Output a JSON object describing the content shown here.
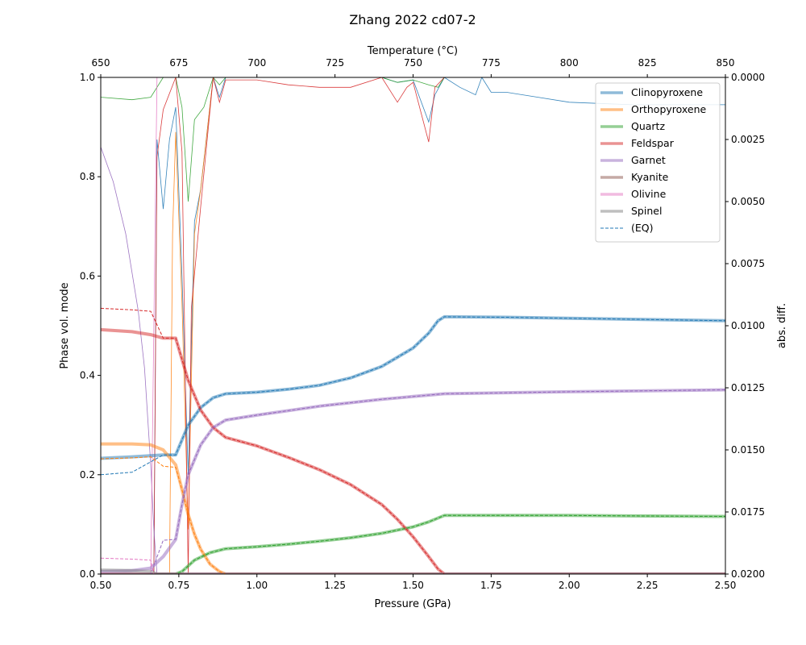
{
  "chart_data": {
    "type": "line",
    "title": "Zhang 2022 cd07-2",
    "xlabel": "Pressure (GPa)",
    "ylabel": "Phase vol. mode",
    "x2label": "Temperature (°C)",
    "y2label": "abs. diff.",
    "xlim": [
      0.5,
      2.5
    ],
    "ylim": [
      0,
      1
    ],
    "x2lim": [
      650,
      850
    ],
    "y2lim": [
      0.02,
      0
    ],
    "xticks": [
      "0.50",
      "0.75",
      "1.00",
      "1.25",
      "1.50",
      "1.75",
      "2.00",
      "2.25",
      "2.50"
    ],
    "yticks": [
      "0.0",
      "0.2",
      "0.4",
      "0.6",
      "0.8",
      "1.0"
    ],
    "x2ticks": [
      "650",
      "675",
      "700",
      "725",
      "750",
      "775",
      "800",
      "825",
      "850"
    ],
    "y2ticks": [
      "0.0000",
      "0.0025",
      "0.0050",
      "0.0075",
      "0.0100",
      "0.0125",
      "0.0150",
      "0.0175",
      "0.0200"
    ],
    "legend_position": "top-right",
    "legend": [
      "Clinopyroxene",
      "Orthopyroxene",
      "Quartz",
      "Feldspar",
      "Garnet",
      "Kyanite",
      "Olivine",
      "Spinel",
      "(EQ)"
    ],
    "grid": false,
    "series": [
      {
        "name": "Clinopyroxene",
        "color": "#1f77b4",
        "x": [
          0.5,
          0.6,
          0.7,
          0.74,
          0.78,
          0.82,
          0.86,
          0.9,
          1.0,
          1.1,
          1.2,
          1.3,
          1.4,
          1.5,
          1.55,
          1.58,
          1.6,
          1.8,
          2.0,
          2.2,
          2.5
        ],
        "y": [
          0.233,
          0.236,
          0.24,
          0.24,
          0.3,
          0.335,
          0.355,
          0.363,
          0.366,
          0.372,
          0.38,
          0.395,
          0.418,
          0.455,
          0.485,
          0.51,
          0.518,
          0.517,
          0.515,
          0.513,
          0.51
        ],
        "eq": [
          0.2,
          0.205,
          0.24,
          0.24,
          0.3,
          0.335,
          0.355,
          0.363,
          0.366,
          0.372,
          0.38,
          0.395,
          0.418,
          0.455,
          0.485,
          0.51,
          0.518,
          0.517,
          0.515,
          0.513,
          0.51
        ]
      },
      {
        "name": "Orthopyroxene",
        "color": "#ff7f0e",
        "x": [
          0.5,
          0.6,
          0.66,
          0.7,
          0.74,
          0.76,
          0.78,
          0.8,
          0.82,
          0.85,
          0.88,
          0.9,
          1.0,
          1.5,
          2.0,
          2.5
        ],
        "y": [
          0.262,
          0.262,
          0.26,
          0.25,
          0.22,
          0.17,
          0.12,
          0.08,
          0.05,
          0.02,
          0.005,
          0.0,
          0.0,
          0.0,
          0.0,
          0.0
        ],
        "eq": [
          0.232,
          0.234,
          0.236,
          0.217,
          0.215,
          0.17,
          0.12,
          0.08,
          0.05,
          0.02,
          0.005,
          0.0,
          0.0,
          0.0,
          0.0,
          0.0
        ]
      },
      {
        "name": "Quartz",
        "color": "#2ca02c",
        "x": [
          0.5,
          0.74,
          0.76,
          0.8,
          0.85,
          0.9,
          1.0,
          1.1,
          1.2,
          1.3,
          1.4,
          1.5,
          1.55,
          1.6,
          1.8,
          2.0,
          2.2,
          2.5
        ],
        "y": [
          0.0,
          0.0,
          0.005,
          0.028,
          0.043,
          0.051,
          0.055,
          0.06,
          0.066,
          0.073,
          0.082,
          0.095,
          0.105,
          0.118,
          0.118,
          0.118,
          0.117,
          0.116
        ],
        "eq": [
          0.0,
          0.0,
          0.005,
          0.028,
          0.043,
          0.051,
          0.055,
          0.06,
          0.066,
          0.073,
          0.082,
          0.095,
          0.105,
          0.118,
          0.118,
          0.118,
          0.117,
          0.116
        ]
      },
      {
        "name": "Feldspar",
        "color": "#d62728",
        "x": [
          0.5,
          0.6,
          0.66,
          0.7,
          0.74,
          0.78,
          0.82,
          0.86,
          0.9,
          1.0,
          1.1,
          1.2,
          1.3,
          1.4,
          1.45,
          1.5,
          1.55,
          1.58,
          1.6,
          2.0,
          2.5
        ],
        "y": [
          0.492,
          0.488,
          0.482,
          0.475,
          0.475,
          0.39,
          0.33,
          0.295,
          0.275,
          0.258,
          0.235,
          0.21,
          0.18,
          0.14,
          0.11,
          0.075,
          0.035,
          0.01,
          0.0,
          0.0,
          0.0
        ],
        "eq": [
          0.535,
          0.532,
          0.529,
          0.475,
          0.475,
          0.39,
          0.33,
          0.295,
          0.275,
          0.258,
          0.235,
          0.21,
          0.18,
          0.14,
          0.11,
          0.075,
          0.035,
          0.01,
          0.0,
          0.0,
          0.0
        ]
      },
      {
        "name": "Garnet",
        "color": "#9467bd",
        "x": [
          0.5,
          0.6,
          0.66,
          0.7,
          0.74,
          0.76,
          0.78,
          0.82,
          0.86,
          0.9,
          1.0,
          1.2,
          1.4,
          1.6,
          2.0,
          2.5
        ],
        "y": [
          0.005,
          0.007,
          0.012,
          0.035,
          0.07,
          0.14,
          0.2,
          0.26,
          0.295,
          0.31,
          0.32,
          0.338,
          0.352,
          0.363,
          0.367,
          0.371
        ],
        "eq": [
          0.0,
          0.0,
          0.0,
          0.068,
          0.07,
          0.14,
          0.2,
          0.26,
          0.295,
          0.31,
          0.32,
          0.338,
          0.352,
          0.363,
          0.367,
          0.371
        ]
      },
      {
        "name": "Kyanite",
        "color": "#8c564b",
        "x": [
          0.5,
          0.7,
          0.75,
          0.78,
          0.8,
          1.0,
          2.5
        ],
        "y": [
          0.0,
          0.0,
          0.0,
          0.0,
          0.0,
          0.0,
          0.0
        ],
        "eq": [
          0.0,
          0.0,
          0.0,
          0.0,
          0.0,
          0.0,
          0.0
        ]
      },
      {
        "name": "Olivine",
        "color": "#e377c2",
        "x": [
          0.5,
          0.6,
          0.66,
          0.67,
          0.7,
          1.0,
          2.5
        ],
        "y": [
          0.0,
          0.0,
          0.0,
          0.0,
          0.0,
          0.0,
          0.0
        ],
        "eq": [
          0.032,
          0.03,
          0.028,
          0.0,
          0.0,
          0.0,
          0.0
        ]
      },
      {
        "name": "Spinel",
        "color": "#7f7f7f",
        "x": [
          0.5,
          0.6,
          0.66,
          0.68,
          0.7,
          2.5
        ],
        "y": [
          0.008,
          0.007,
          0.005,
          0.0,
          0.0,
          0.0
        ],
        "eq": [
          0.0,
          0.0,
          0.0,
          0.0,
          0.0,
          0.0
        ]
      }
    ],
    "diff_series": [
      {
        "name": "Clinopyroxene",
        "color": "#1f77b4",
        "x": [
          0.5,
          0.66,
          0.67,
          0.68,
          0.7,
          0.72,
          0.74,
          0.76,
          0.78,
          0.8,
          0.82,
          0.86,
          0.88,
          0.9,
          1.0,
          1.2,
          1.4,
          1.45,
          1.5,
          1.55,
          1.57,
          1.6,
          1.65,
          1.7,
          1.72,
          1.75,
          1.8,
          1.9,
          2.0,
          2.2,
          2.5
        ],
        "y": [
          0.02,
          0.02,
          0.02,
          0.0025,
          0.0053,
          0.0025,
          0.0012,
          0.008,
          0.016,
          0.0058,
          0.0045,
          0.0,
          0.0008,
          0.0,
          0.0,
          0.0,
          0.0,
          0.0002,
          0.0001,
          0.0018,
          0.0007,
          0.0,
          0.0004,
          0.0007,
          0.0,
          0.0006,
          0.0006,
          0.0008,
          0.001,
          0.0011,
          0.0011
        ]
      },
      {
        "name": "Orthopyroxene",
        "color": "#ff7f0e",
        "x": [
          0.5,
          0.72,
          0.73,
          0.74,
          0.76,
          0.78,
          0.8,
          0.82,
          0.86,
          0.9,
          1.0,
          1.5,
          2.5
        ],
        "y": [
          0.02,
          0.02,
          0.0063,
          0.0022,
          0.0091,
          0.0182,
          0.0063,
          0.0045,
          0.0,
          0.0,
          0.0,
          0.0,
          0.0
        ]
      },
      {
        "name": "Quartz",
        "color": "#2ca02c",
        "x": [
          0.5,
          0.6,
          0.66,
          0.7,
          0.74,
          0.76,
          0.78,
          0.8,
          0.83,
          0.86,
          0.88,
          0.9,
          1.0,
          1.1,
          1.2,
          1.3,
          1.4,
          1.45,
          1.5,
          1.55,
          1.58,
          1.6,
          1.65,
          2.5
        ],
        "y": [
          0.0008,
          0.0009,
          0.0008,
          0.0,
          0.0,
          0.0012,
          0.005,
          0.0017,
          0.0012,
          0.0,
          0.0003,
          0.0,
          0.0,
          0.0,
          0.0,
          0.0,
          0.0,
          0.0002,
          0.0001,
          0.0003,
          0.0004,
          0.0,
          0.0,
          0.0
        ]
      },
      {
        "name": "Feldspar",
        "color": "#d62728",
        "x": [
          0.5,
          0.67,
          0.68,
          0.7,
          0.74,
          0.76,
          0.78,
          0.79,
          0.82,
          0.86,
          0.88,
          0.9,
          1.0,
          1.1,
          1.2,
          1.3,
          1.4,
          1.45,
          1.48,
          1.5,
          1.55,
          1.57,
          1.6,
          2.5
        ],
        "y": [
          0.02,
          0.02,
          0.0032,
          0.0013,
          0.0,
          0.003,
          0.02,
          0.0093,
          0.0052,
          0.0,
          0.001,
          0.0001,
          0.0001,
          0.0003,
          0.0004,
          0.0004,
          0.0,
          0.001,
          0.0004,
          0.0002,
          0.0026,
          0.0004,
          0.0,
          0.0
        ]
      },
      {
        "name": "Garnet",
        "color": "#9467bd",
        "x": [
          0.5,
          0.54,
          0.58,
          0.62,
          0.64,
          0.66,
          0.67,
          0.68,
          2.5
        ],
        "y": [
          0.0028,
          0.0042,
          0.0063,
          0.0094,
          0.0117,
          0.0156,
          0.0182,
          0.02,
          0.02
        ]
      },
      {
        "name": "Olivine",
        "color": "#e377c2",
        "x": [
          0.5,
          0.66,
          0.68,
          0.7,
          2.5
        ],
        "y": [
          0.02,
          0.02,
          0.0,
          0.0,
          0.0
        ]
      }
    ]
  }
}
